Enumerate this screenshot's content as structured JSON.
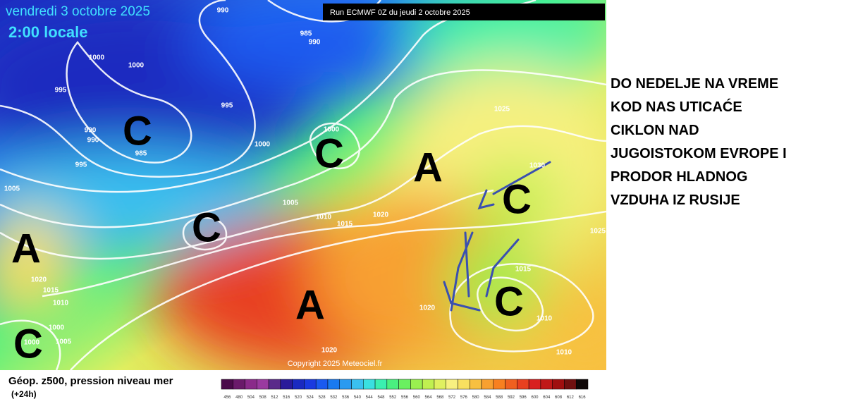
{
  "header": {
    "date": "vendredi 3 octobre 2025",
    "time": "2:00 locale",
    "run": "Run ECMWF 0Z du jeudi 2 octobre 2025"
  },
  "map": {
    "centers": [
      "C",
      "C",
      "A",
      "C",
      "C",
      "A",
      "A",
      "C",
      "C"
    ],
    "isobars": [
      "990",
      "985",
      "990",
      "1000",
      "1000",
      "995",
      "995",
      "990",
      "990",
      "985",
      "995",
      "1000",
      "1000",
      "1025",
      "1030",
      "1005",
      "1005",
      "1010",
      "1015",
      "1020",
      "1025",
      "1015",
      "1020",
      "1015",
      "1010",
      "1020",
      "1010",
      "1000",
      "1005",
      "1020",
      "1010",
      "1000"
    ]
  },
  "copyright": "Copyright 2025 Meteociel.fr",
  "legend": {
    "title": "Géop. z500, pression niveau mer",
    "step": "(+24h)",
    "labels": [
      456,
      480,
      504,
      508,
      512,
      516,
      520,
      524,
      528,
      532,
      536,
      540,
      544,
      548,
      552,
      556,
      560,
      564,
      568,
      572,
      576,
      580,
      584,
      588,
      592,
      596,
      600,
      604,
      608,
      612,
      616
    ],
    "colors": [
      "#4a0a4a",
      "#6a1a6a",
      "#8a2a8a",
      "#9a3aa0",
      "#5a2a8a",
      "#2a1a9a",
      "#1a2ac0",
      "#1a3ae0",
      "#1a5af0",
      "#1a7af0",
      "#2a9af0",
      "#3ac0f0",
      "#3ae0e0",
      "#3af0b0",
      "#4af080",
      "#6af060",
      "#9af050",
      "#c0f050",
      "#e0f060",
      "#f8f080",
      "#f8e060",
      "#f8c040",
      "#f8a030",
      "#f88020",
      "#f06020",
      "#e84020",
      "#d82020",
      "#c01818",
      "#a01010",
      "#701010",
      "#100808"
    ]
  },
  "annotation": {
    "lines": [
      "DO NEDELJE NA VREME",
      "KOD NAS UTICAĆE",
      "CIKLON NAD",
      "JUGOISTOKOM EVROPE I",
      "PRODOR HLADNOG",
      "VZDUHA IZ RUSIJE"
    ]
  }
}
